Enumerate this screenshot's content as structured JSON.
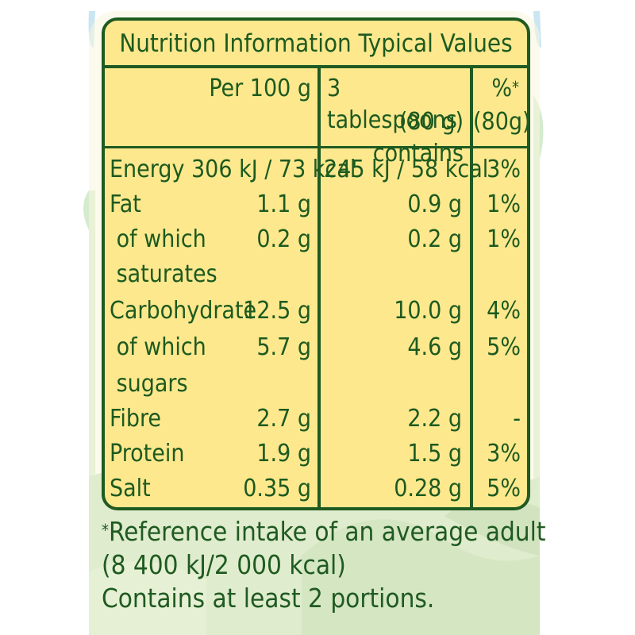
{
  "panel": {
    "title": "Nutrition Information Typical Values",
    "headers": {
      "per100": "Per 100 g",
      "serving_line1": "3 tablespoons",
      "serving_line2": "(80 g) contains",
      "ri_line1": "%",
      "ri_asterisk": "*",
      "ri_line2": "(80g)"
    },
    "rows": [
      {
        "label": "Energy  306 kJ / 73 kcal",
        "per100": "",
        "serving": "245 kJ / 58 kcal",
        "ri": "3%"
      },
      {
        "label": "Fat",
        "per100": "1.1 g",
        "serving": "0.9 g",
        "ri": "1%"
      },
      {
        "label": " of which",
        "label2": " saturates",
        "per100": "0.2 g",
        "serving": "0.2 g",
        "ri": "1%"
      },
      {
        "label": "Carbohydrate",
        "per100": "12.5 g",
        "serving": "10.0 g",
        "ri": "4%"
      },
      {
        "label": " of which",
        "label2": " sugars",
        "per100": "5.7 g",
        "serving": "4.6 g",
        "ri": "5%"
      },
      {
        "label": "Fibre",
        "per100": "2.7 g",
        "serving": "2.2 g",
        "ri": "-"
      },
      {
        "label": "Protein",
        "per100": "1.9 g",
        "serving": "1.5 g",
        "ri": "3%"
      },
      {
        "label": "Salt",
        "per100": "0.35 g",
        "serving": "0.28 g",
        "ri": "5%"
      }
    ]
  },
  "footnote": {
    "asterisk": "*",
    "line1": "Reference intake of an average adult",
    "line2": "(8 400 kJ/2 000 kcal)",
    "line3": "Contains at least 2 portions."
  },
  "colors": {
    "table_fill": "#fde88e",
    "border_green": "#1f5a21",
    "text_green": "#1d5a1f",
    "background_cream": "#f9f5de",
    "leaf_green": "#b8dcb2",
    "sky_blue": "#cde9f4"
  }
}
